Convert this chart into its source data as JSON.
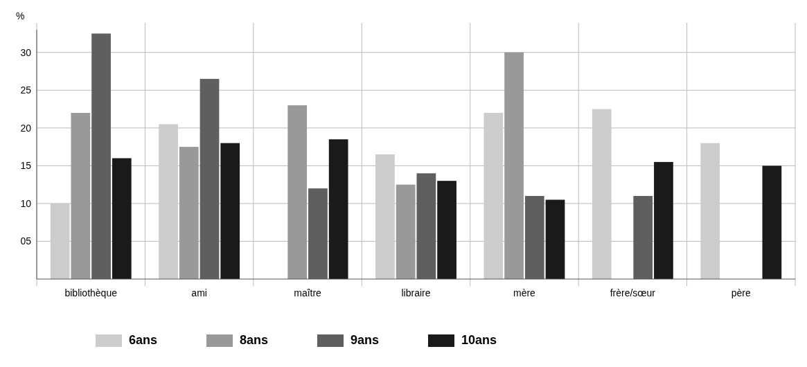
{
  "chart_data": {
    "type": "bar",
    "ylabel": "%",
    "categories": [
      "bibliothèque",
      "ami",
      "maître",
      "libraire",
      "mère",
      "frère/sœur",
      "père"
    ],
    "series": [
      {
        "name": "6ans",
        "color": "#cccccc",
        "values": [
          10,
          20.5,
          null,
          16.5,
          22,
          22.5,
          18
        ]
      },
      {
        "name": "8ans",
        "color": "#999999",
        "values": [
          22,
          17.5,
          23,
          12.5,
          30,
          null,
          null
        ]
      },
      {
        "name": "9ans",
        "color": "#5f5f5f",
        "values": [
          32.5,
          26.5,
          12,
          14,
          11,
          11,
          null
        ]
      },
      {
        "name": "10ans",
        "color": "#1a1a1a",
        "values": [
          16,
          18,
          18.5,
          13,
          10.5,
          15.5,
          15
        ]
      }
    ],
    "ylim": [
      0,
      33
    ],
    "yticks": [
      {
        "value": 5,
        "label": "05"
      },
      10,
      15,
      20,
      25,
      30
    ],
    "grid": true,
    "legend": "bottom"
  }
}
